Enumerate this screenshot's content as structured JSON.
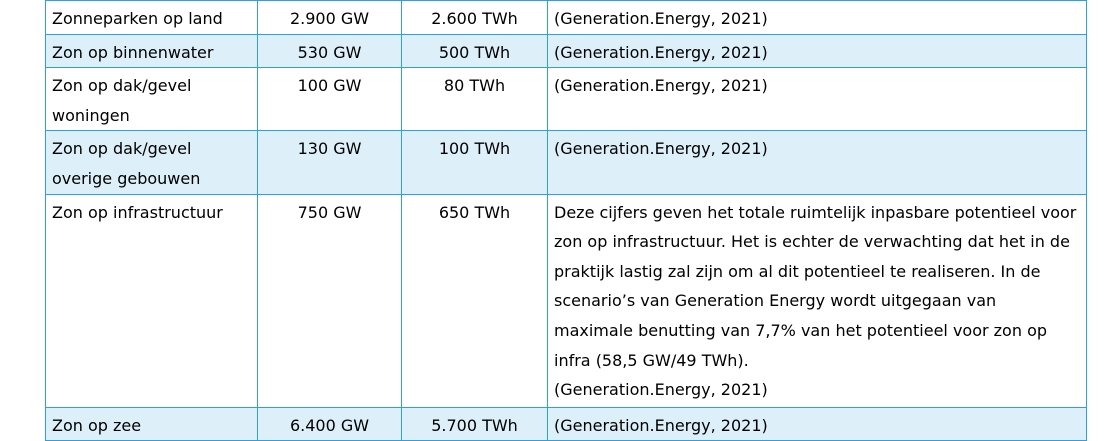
{
  "table": {
    "rows": [
      [
        "Zonneparken op land",
        "2.900 GW",
        "2.600 TWh",
        "(Generation.Energy, 2021)"
      ],
      [
        "Zon op binnenwater",
        "530 GW",
        "500 TWh",
        "(Generation.Energy, 2021)"
      ],
      [
        "Zon op dak/gevel woningen",
        "100 GW",
        "80 TWh",
        "(Generation.Energy, 2021)"
      ],
      [
        "Zon op dak/gevel overige gebouwen",
        "130 GW",
        "100 TWh",
        "(Generation.Energy, 2021)"
      ],
      [
        "Zon op infrastructuur",
        "750 GW",
        "650 TWh",
        [
          "Deze cijfers geven het totale ruimtelijk inpasbare potentieel voor zon op infrastructuur. Het is echter de verwachting dat het in de praktijk lastig zal zijn om al dit potentieel te realiseren. In de scenario’s van Generation Energy wordt uitgegaan van maximale benutting van 7,7% van het potentieel voor zon op infra (58,5 GW/49 TWh).",
          "(Generation.Energy, 2021)"
        ]
      ],
      [
        "Zon op zee",
        "6.400 GW",
        "5.700 TWh",
        "(Generation.Energy, 2021)"
      ]
    ]
  }
}
